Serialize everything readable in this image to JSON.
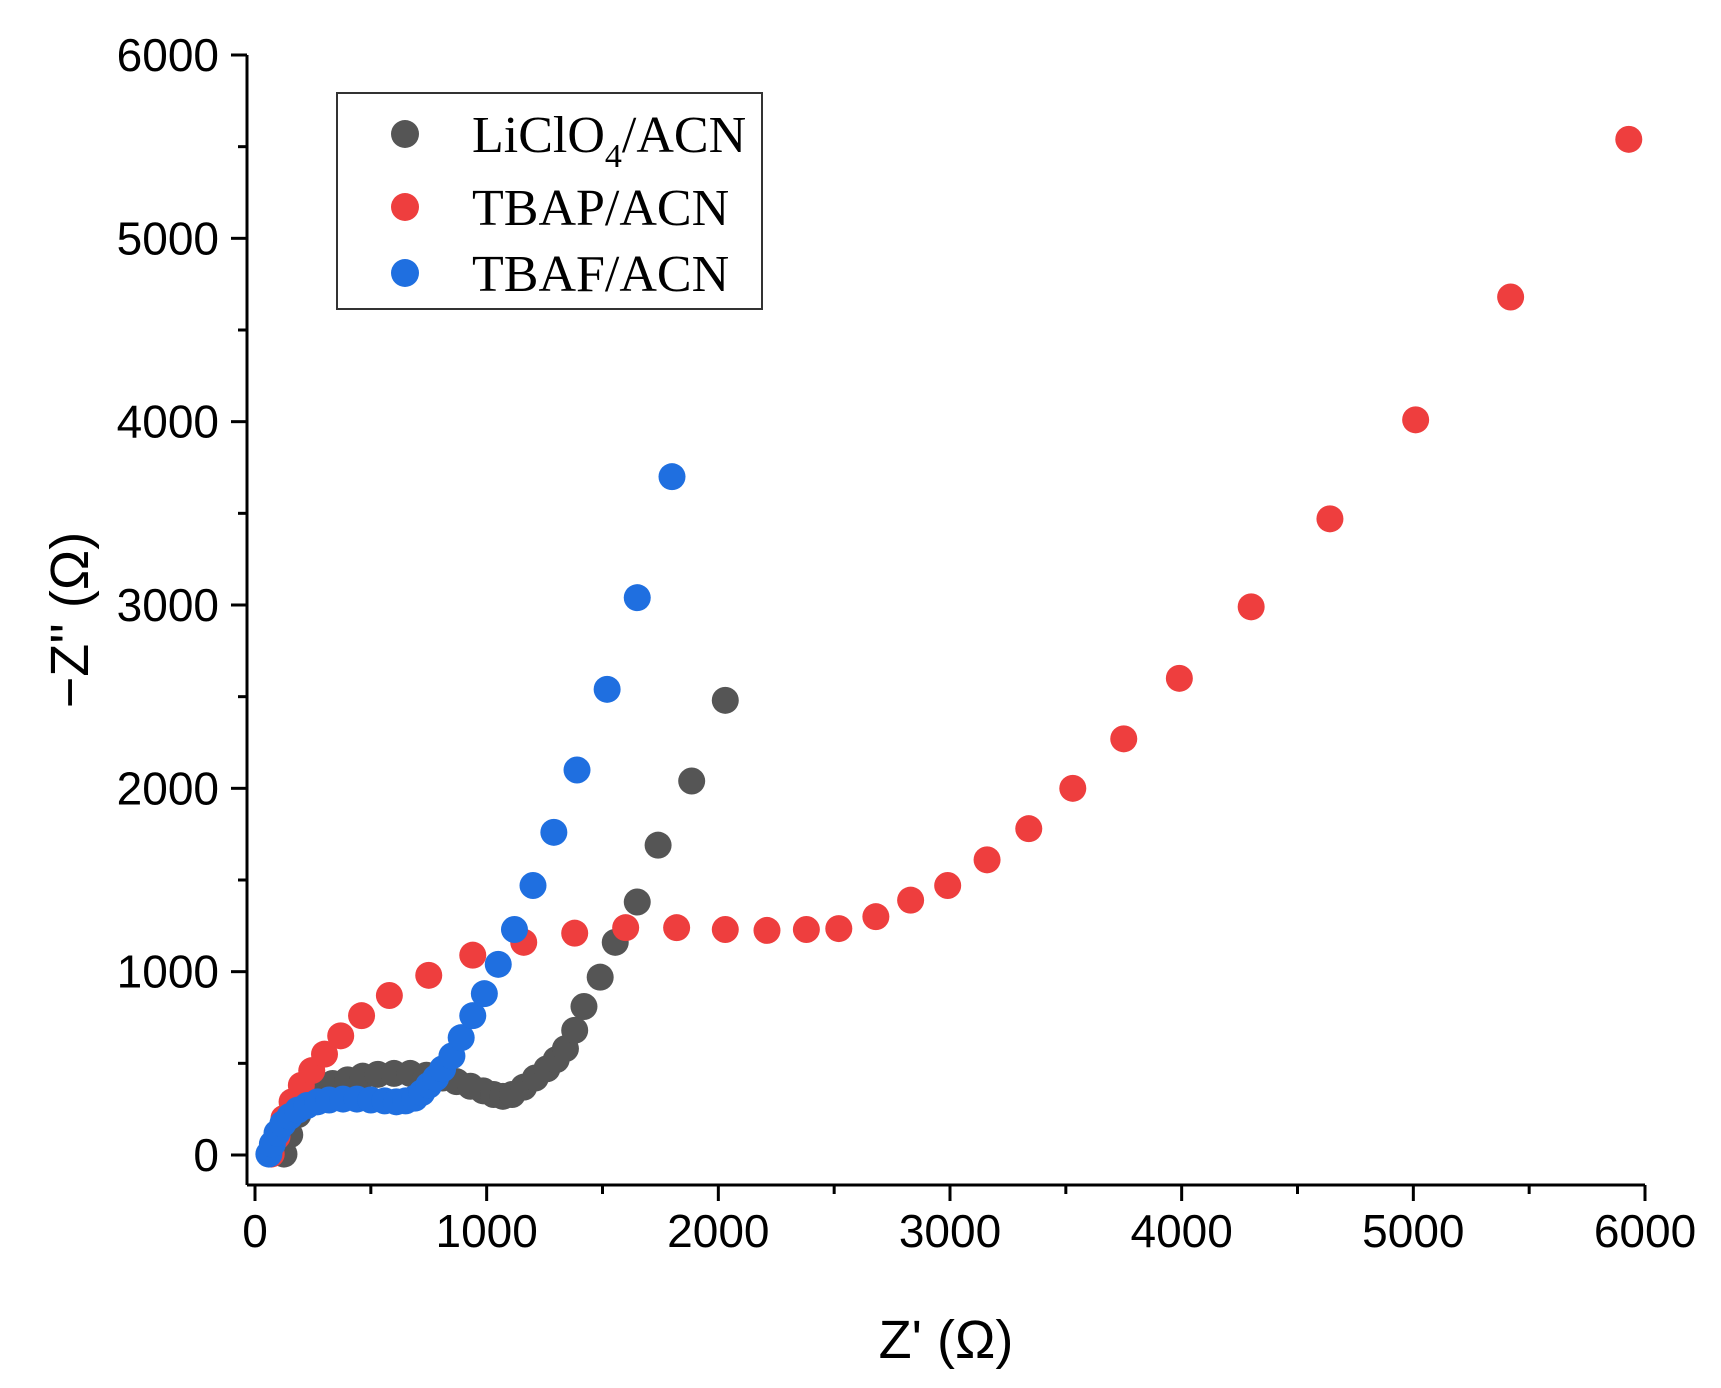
{
  "chart_data": {
    "type": "scatter",
    "title": "",
    "xlabel": "Z' (Ω)",
    "ylabel": "−Z'' (Ω)",
    "xlim": [
      0,
      6000
    ],
    "ylim": [
      0,
      6000
    ],
    "xticks": [
      0,
      1000,
      2000,
      3000,
      4000,
      5000,
      6000
    ],
    "yticks": [
      0,
      1000,
      2000,
      3000,
      4000,
      5000,
      6000
    ],
    "grid": false,
    "legend_position": "top-left",
    "series": [
      {
        "name": "LiClO4/ACN",
        "label_main": "LiClO",
        "label_sub": "4",
        "label_tail": "/ACN",
        "color": "#555555",
        "x": [
          125,
          150,
          185,
          225,
          275,
          335,
          400,
          465,
          530,
          600,
          670,
          740,
          810,
          870,
          930,
          985,
          1030,
          1070,
          1110,
          1160,
          1210,
          1260,
          1300,
          1340,
          1380,
          1420,
          1490,
          1555,
          1650,
          1740,
          1885,
          2030
        ],
        "y": [
          5,
          110,
          220,
          300,
          350,
          390,
          410,
          430,
          440,
          445,
          445,
          435,
          420,
          400,
          375,
          350,
          330,
          320,
          330,
          370,
          420,
          470,
          520,
          580,
          680,
          810,
          970,
          1160,
          1380,
          1690,
          2040,
          2480
        ]
      },
      {
        "name": "TBAP/ACN",
        "label_main": "TBAP/ACN",
        "label_sub": "",
        "label_tail": "",
        "color": "#ee3e3e",
        "x": [
          70,
          95,
          125,
          160,
          200,
          245,
          300,
          370,
          460,
          580,
          750,
          940,
          1160,
          1380,
          1600,
          1820,
          2030,
          2210,
          2380,
          2520,
          2680,
          2830,
          2990,
          3160,
          3340,
          3530,
          3750,
          3990,
          4300,
          4640,
          5010,
          5420,
          5930
        ],
        "y": [
          5,
          100,
          200,
          290,
          380,
          460,
          550,
          650,
          760,
          870,
          980,
          1090,
          1160,
          1210,
          1240,
          1240,
          1230,
          1225,
          1230,
          1235,
          1300,
          1390,
          1470,
          1610,
          1780,
          2000,
          2270,
          2600,
          2990,
          3470,
          4010,
          4680,
          5540
        ]
      },
      {
        "name": "TBAF/ACN",
        "label_main": "TBAF/ACN",
        "label_sub": "",
        "label_tail": "",
        "color": "#1f6fe0",
        "x": [
          60,
          75,
          95,
          120,
          150,
          185,
          225,
          270,
          320,
          380,
          440,
          500,
          560,
          610,
          650,
          690,
          720,
          750,
          780,
          810,
          850,
          890,
          940,
          990,
          1050,
          1120,
          1200,
          1290,
          1390,
          1520,
          1650,
          1800
        ],
        "y": [
          5,
          60,
          120,
          170,
          210,
          245,
          270,
          290,
          300,
          305,
          305,
          300,
          295,
          290,
          295,
          310,
          340,
          380,
          420,
          470,
          540,
          640,
          760,
          880,
          1040,
          1230,
          1470,
          1760,
          2100,
          2540,
          3040,
          3700
        ]
      }
    ]
  }
}
